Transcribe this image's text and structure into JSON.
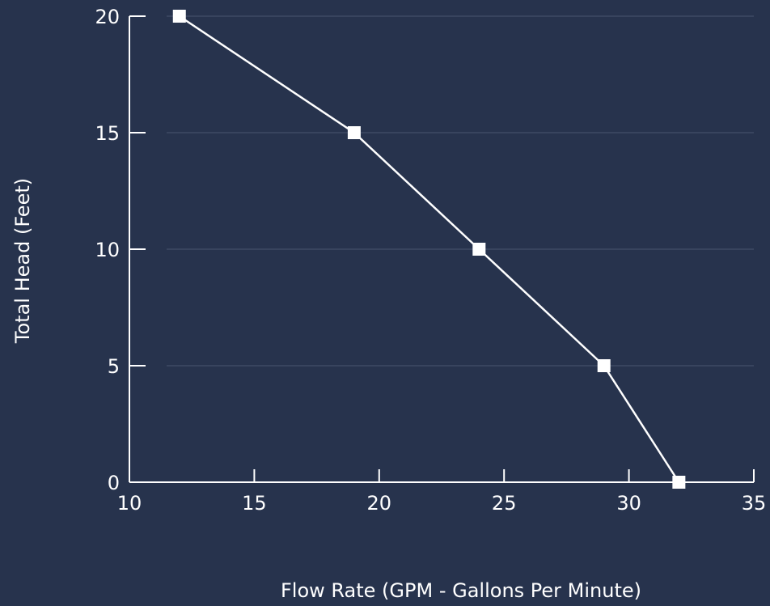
{
  "chart_data": {
    "type": "line",
    "title": "",
    "xlabel": "Flow Rate (GPM - Gallons Per Minute)",
    "ylabel": "Total Head (Feet)",
    "x": [
      12,
      19,
      24,
      29,
      32
    ],
    "series": [
      {
        "values": [
          20,
          15,
          10,
          5,
          0
        ]
      }
    ],
    "xlim": [
      10,
      35
    ],
    "ylim": [
      0,
      20
    ],
    "x_ticks": [
      10,
      15,
      20,
      25,
      30,
      35
    ],
    "y_ticks": [
      0,
      5,
      10,
      15,
      20
    ],
    "grid": "horizontal",
    "marker": "square",
    "colors": {
      "background": "#27334d",
      "line": "#ffffff",
      "marker": "#ffffff",
      "grid": "#4a5570",
      "axis": "#ffffff",
      "text": "#ffffff"
    }
  }
}
